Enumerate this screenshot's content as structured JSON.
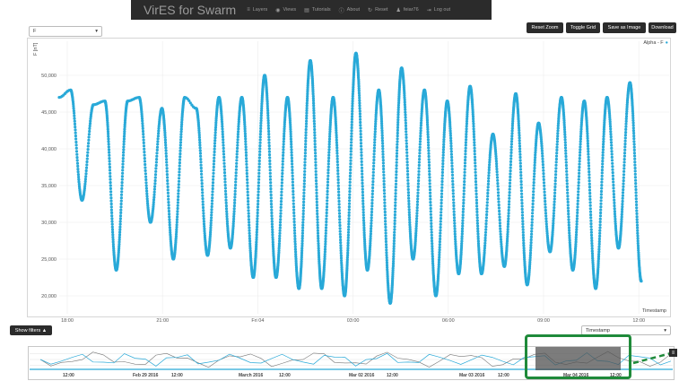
{
  "app": {
    "brand": "VirES for Swarm",
    "nav": [
      {
        "label": "Layers",
        "icon": "layers-icon",
        "glyph": "≡"
      },
      {
        "label": "Views",
        "icon": "eye-icon",
        "glyph": "◉"
      },
      {
        "label": "Tutorials",
        "icon": "book-icon",
        "glyph": "▤"
      },
      {
        "label": "About",
        "icon": "info-icon",
        "glyph": "ⓘ"
      },
      {
        "label": "Reset",
        "icon": "reset-icon",
        "glyph": "↻"
      },
      {
        "label": "feiar76",
        "icon": "user-icon",
        "glyph": "♟"
      },
      {
        "label": "Log out",
        "icon": "logout-icon",
        "glyph": "⇥"
      }
    ]
  },
  "controls": {
    "parameter_select": "F",
    "buttons": [
      "Reset Zoom",
      "Toggle Grid",
      "Save as Image",
      "Download"
    ],
    "show_filters": "Show filters ▲",
    "x_axis_select": "Timestamp"
  },
  "colors": {
    "series": "#29a9d8",
    "navbar": "#2b2b2b",
    "highlight": "#1f8a3a"
  },
  "chart_data": {
    "type": "scatter",
    "ylabel": "F [nT]",
    "xlabel": "Timestamp",
    "legend": {
      "label": "Alpha - F",
      "placement": "top-right"
    },
    "ylim": [
      18000,
      55000
    ],
    "y_ticks": [
      "20,000",
      "25,000",
      "30,000",
      "35,000",
      "40,000",
      "45,000",
      "50,000"
    ],
    "x_ticks": [
      "18:00",
      "21:00",
      "Fri 04",
      "03:00",
      "06:00",
      "09:00",
      "12:00"
    ],
    "series": [
      {
        "values": [
          47000,
          48000,
          33000,
          46000,
          46500,
          23500,
          46500,
          47000,
          30000,
          45500,
          25000,
          47000,
          45500,
          25500,
          47000,
          26500,
          47000,
          22500,
          50000,
          22500,
          47000,
          21000,
          52000,
          21000,
          47000,
          20000,
          53000,
          23500,
          48000,
          19000,
          51000,
          25000,
          48000,
          20000,
          46500,
          23000,
          48500,
          23000,
          42000,
          24000,
          47500,
          21500,
          43500,
          26000,
          47000,
          23500,
          46500,
          21000,
          47000,
          26500,
          49000,
          22000
        ]
      }
    ]
  },
  "timeline": {
    "labels": [
      "12:00",
      "Feb 29 2016",
      "12:00",
      "March 2016",
      "12:00",
      "Mar 02 2016",
      "12:00",
      "Mar 03 2016",
      "12:00",
      "Mar 04 2016",
      "12:00"
    ]
  }
}
